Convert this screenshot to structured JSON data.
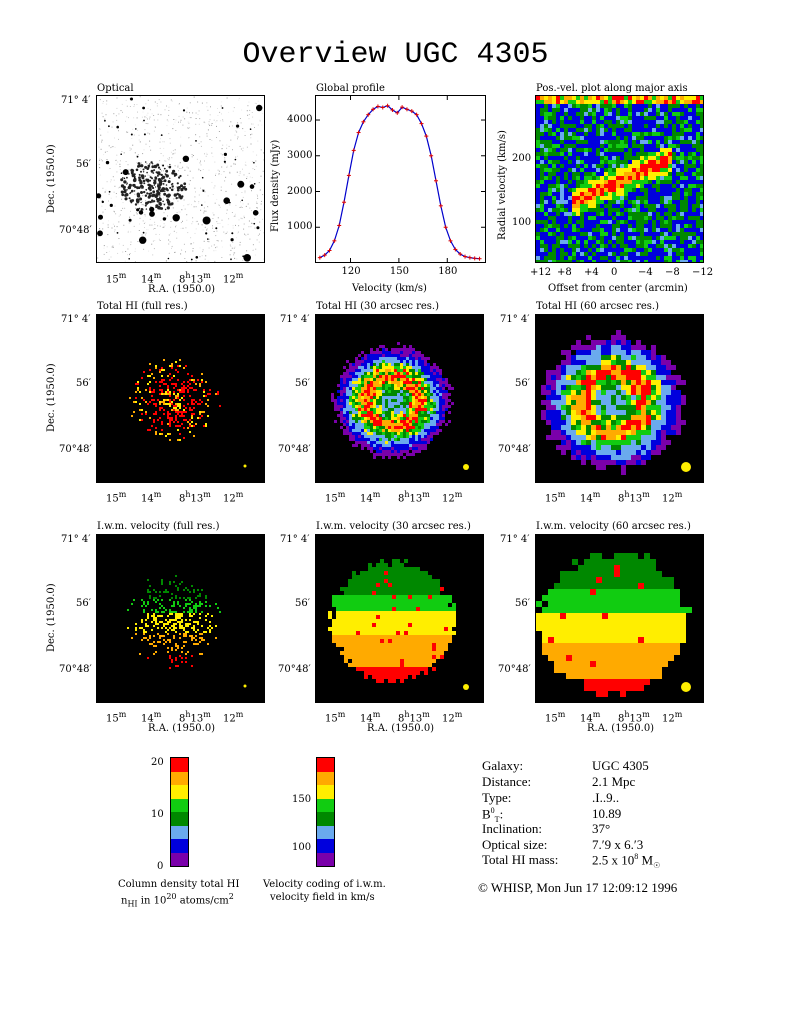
{
  "title": "Overview UGC 4305",
  "panels": {
    "optical": "Optical",
    "global_profile": "Global profile",
    "pv": "Pos.-vel. plot along major axis",
    "hi_full": "Total HI (full res.)",
    "hi_30": "Total HI (30 arcsec res.)",
    "hi_60": "Total HI (60 arcsec res.)",
    "vel_full": "I.w.m. velocity (full res.)",
    "vel_30": "I.w.m. velocity (30 arcsec res.)",
    "vel_60": "I.w.m. velocity (60 arcsec res.)"
  },
  "axes": {
    "dec_label": "Dec. (1950.0)",
    "ra_label": "R.A. (1950.0)",
    "dec_ticks": [
      "71° 4′",
      "56′",
      "70°48′"
    ],
    "ra_ticks": [
      "15m",
      "14m",
      "8h13m",
      "12m"
    ],
    "flux_label": "Flux density (mJy)",
    "velocity_label": "Velocity (km/s)",
    "radial_label": "Radial velocity (km/s)",
    "offset_label": "Offset from center (arcmin)"
  },
  "chart_data": [
    {
      "type": "line",
      "title": "Global profile",
      "xlabel": "Velocity (km/s)",
      "ylabel": "Flux density (mJy)",
      "xlim": [
        98,
        204
      ],
      "ylim": [
        0,
        4700
      ],
      "xticks": [
        120,
        150,
        180
      ],
      "yticks": [
        1000,
        2000,
        3000,
        4000
      ],
      "x": [
        101,
        104,
        107,
        110,
        113,
        116,
        119,
        122,
        125,
        128,
        131,
        134,
        137,
        140,
        143,
        146,
        149,
        152,
        155,
        158,
        161,
        164,
        167,
        170,
        173,
        176,
        179,
        182,
        185,
        188,
        191,
        194,
        197,
        200
      ],
      "y": [
        150,
        220,
        350,
        620,
        1050,
        1700,
        2450,
        3150,
        3650,
        3950,
        4150,
        4300,
        4380,
        4350,
        4400,
        4280,
        4200,
        4360,
        4300,
        4250,
        4150,
        3900,
        3550,
        3000,
        2300,
        1600,
        1000,
        620,
        380,
        250,
        180,
        150,
        130,
        120
      ]
    },
    {
      "type": "heatmap",
      "title": "Pos.-vel. plot along major axis",
      "xlabel": "Offset from center (arcmin)",
      "ylabel": "Radial velocity (km/s)",
      "xticks": [
        "+12",
        "+8",
        "+4",
        "0",
        "−4",
        "−8",
        "−12"
      ],
      "yticks": [
        100,
        200
      ]
    },
    {
      "type": "heatmap",
      "title": "Column density total HI",
      "scale_label": [
        "Column density total HI",
        "nHI in 10^20 atoms/cm^2"
      ],
      "ticks": [
        0,
        10,
        20
      ],
      "colors": [
        "#7a00aa",
        "#0000dd",
        "#6aaaee",
        "#008800",
        "#11cc11",
        "#ffee00",
        "#ffaa00",
        "#ff0000"
      ]
    },
    {
      "type": "heatmap",
      "title": "Velocity coding of i.w.m. velocity field",
      "scale_label": [
        "Velocity coding of i.w.m.",
        "velocity field in km/s"
      ],
      "ticks": [
        100,
        150
      ],
      "colors": [
        "#7a00aa",
        "#0000dd",
        "#6aaaee",
        "#008800",
        "#11cc11",
        "#ffee00",
        "#ffaa00",
        "#ff0000"
      ]
    }
  ],
  "info": {
    "rows": [
      {
        "label": "Galaxy:",
        "value": "UGC 4305"
      },
      {
        "label": "Distance:",
        "value": "2.1 Mpc"
      },
      {
        "label": "Type:",
        "value": ".I..9.."
      },
      {
        "label": "B0T:",
        "value": "10.89"
      },
      {
        "label": "Inclination:",
        "value": "37°"
      },
      {
        "label": "Optical size:",
        "value": "7.′9 x 6.′3"
      },
      {
        "label": "Total HI mass:",
        "value": "2.5 x 10^8 M☉"
      }
    ],
    "footer": "© WHISP, Mon Jun 17 12:09:12 1996"
  },
  "colors": {
    "purple": "#7a00aa",
    "blue": "#0000dd",
    "lightblue": "#6aaaee",
    "darkgreen": "#008800",
    "green": "#11cc11",
    "yellow": "#ffee00",
    "orange": "#ffaa00",
    "red": "#ff0000",
    "beam": "#ffee00"
  }
}
